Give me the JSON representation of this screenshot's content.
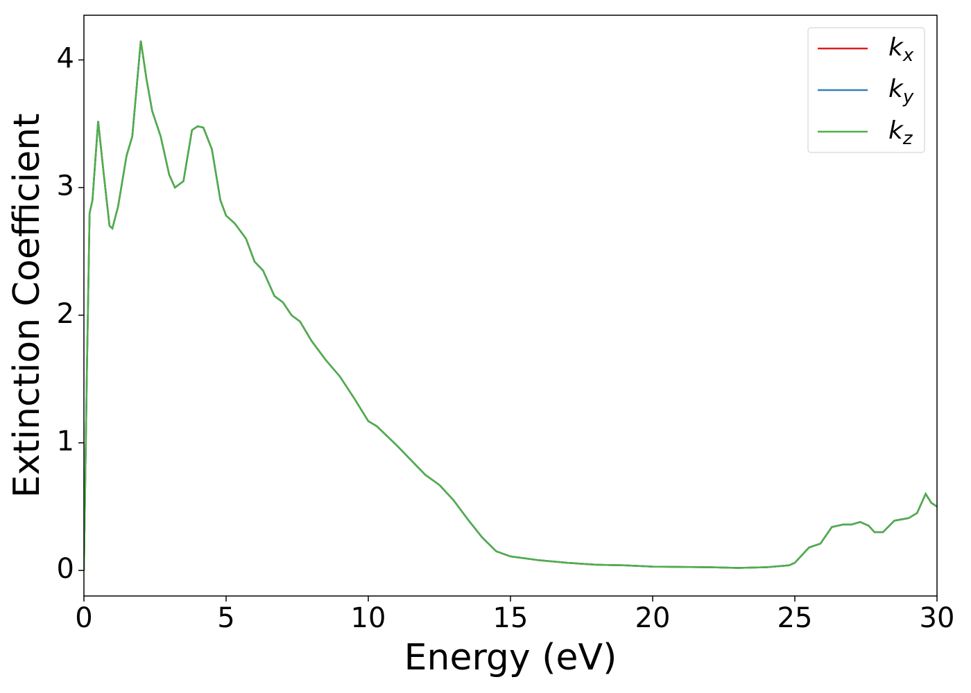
{
  "chart_data": {
    "type": "line",
    "x_label": "Energy (eV)",
    "y_label": "Extinction Coefficient",
    "x": [
      0,
      0.1,
      0.2,
      0.3,
      0.5,
      0.7,
      0.9,
      1.0,
      1.2,
      1.5,
      1.7,
      2.0,
      2.2,
      2.4,
      2.7,
      3.0,
      3.2,
      3.5,
      3.8,
      4.0,
      4.2,
      4.5,
      4.8,
      5.0,
      5.3,
      5.7,
      6.0,
      6.3,
      6.7,
      7.0,
      7.3,
      7.6,
      8.0,
      8.5,
      9.0,
      9.5,
      10.0,
      10.3,
      11.0,
      12.0,
      12.5,
      13.0,
      13.5,
      14.0,
      14.5,
      15.0,
      16.0,
      17.0,
      18.0,
      19.0,
      20.0,
      22.0,
      23.0,
      24.0,
      24.8,
      25.0,
      25.5,
      25.9,
      26.3,
      26.7,
      27.0,
      27.3,
      27.6,
      27.8,
      28.1,
      28.5,
      29.0,
      29.3,
      29.6,
      29.8,
      30.0
    ],
    "series": [
      {
        "name": "kx",
        "color": "#e41a1c",
        "values": [
          0,
          1.5,
          2.8,
          2.9,
          3.52,
          3.1,
          2.7,
          2.68,
          2.85,
          3.25,
          3.4,
          4.15,
          3.85,
          3.6,
          3.4,
          3.1,
          3.0,
          3.05,
          3.45,
          3.48,
          3.47,
          3.3,
          2.9,
          2.78,
          2.72,
          2.6,
          2.42,
          2.35,
          2.15,
          2.1,
          2.0,
          1.95,
          1.8,
          1.65,
          1.52,
          1.35,
          1.17,
          1.13,
          0.98,
          0.75,
          0.67,
          0.55,
          0.4,
          0.26,
          0.15,
          0.11,
          0.08,
          0.06,
          0.045,
          0.04,
          0.03,
          0.025,
          0.02,
          0.025,
          0.04,
          0.06,
          0.18,
          0.21,
          0.34,
          0.36,
          0.36,
          0.38,
          0.35,
          0.3,
          0.3,
          0.39,
          0.41,
          0.45,
          0.6,
          0.53,
          0.5
        ]
      },
      {
        "name": "ky",
        "color": "#377eb8",
        "values": [
          0,
          1.5,
          2.8,
          2.9,
          3.52,
          3.1,
          2.7,
          2.68,
          2.85,
          3.25,
          3.4,
          4.15,
          3.85,
          3.6,
          3.4,
          3.1,
          3.0,
          3.05,
          3.45,
          3.48,
          3.47,
          3.3,
          2.9,
          2.78,
          2.72,
          2.6,
          2.42,
          2.35,
          2.15,
          2.1,
          2.0,
          1.95,
          1.8,
          1.65,
          1.52,
          1.35,
          1.17,
          1.13,
          0.98,
          0.75,
          0.67,
          0.55,
          0.4,
          0.26,
          0.15,
          0.11,
          0.08,
          0.06,
          0.045,
          0.04,
          0.03,
          0.025,
          0.02,
          0.025,
          0.04,
          0.06,
          0.18,
          0.21,
          0.34,
          0.36,
          0.36,
          0.38,
          0.35,
          0.3,
          0.3,
          0.39,
          0.41,
          0.45,
          0.6,
          0.53,
          0.5
        ]
      },
      {
        "name": "kz",
        "color": "#4daf4a",
        "values": [
          0,
          1.5,
          2.8,
          2.9,
          3.52,
          3.1,
          2.7,
          2.68,
          2.85,
          3.25,
          3.4,
          4.15,
          3.85,
          3.6,
          3.4,
          3.1,
          3.0,
          3.05,
          3.45,
          3.48,
          3.47,
          3.3,
          2.9,
          2.78,
          2.72,
          2.6,
          2.42,
          2.35,
          2.15,
          2.1,
          2.0,
          1.95,
          1.8,
          1.65,
          1.52,
          1.35,
          1.17,
          1.13,
          0.98,
          0.75,
          0.67,
          0.55,
          0.4,
          0.26,
          0.15,
          0.11,
          0.08,
          0.06,
          0.045,
          0.04,
          0.03,
          0.025,
          0.02,
          0.025,
          0.04,
          0.06,
          0.18,
          0.21,
          0.34,
          0.36,
          0.36,
          0.38,
          0.35,
          0.3,
          0.3,
          0.39,
          0.41,
          0.45,
          0.6,
          0.53,
          0.5
        ]
      }
    ],
    "xlim": [
      0,
      30
    ],
    "xticks": [
      0,
      5,
      10,
      15,
      20,
      25,
      30
    ],
    "ylim": [
      -0.2,
      4.35
    ],
    "yticks": [
      0,
      1,
      2,
      3,
      4
    ],
    "grid": false,
    "legend": "upper right"
  }
}
